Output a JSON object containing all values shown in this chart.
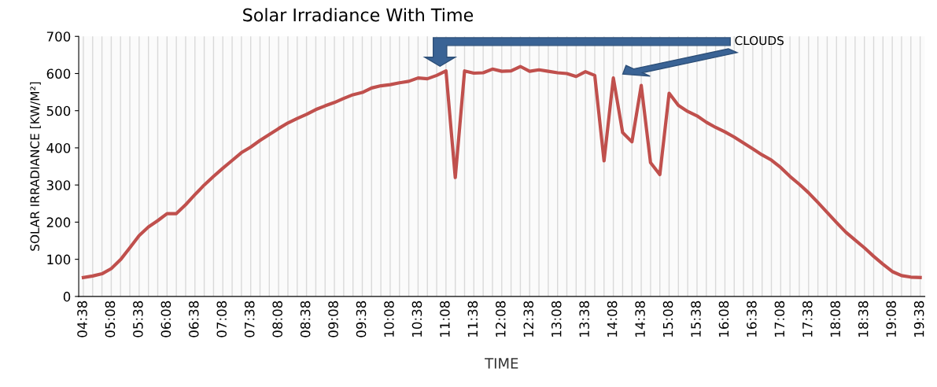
{
  "chart_data": {
    "type": "line",
    "title": "Solar Irradiance With Time",
    "xlabel": "TIME",
    "ylabel": "SOLAR IRRADIANCE [KW/M²]",
    "categories": [
      "04:38",
      null,
      null,
      "05:08",
      null,
      null,
      "05:38",
      null,
      null,
      "06:08",
      null,
      null,
      "06:38",
      null,
      null,
      "07:08",
      null,
      null,
      "07:38",
      null,
      null,
      "08:08",
      null,
      null,
      "08:38",
      null,
      null,
      "09:08",
      null,
      null,
      "09:38",
      null,
      null,
      "10:08",
      null,
      null,
      "10:38",
      null,
      null,
      "11:08",
      null,
      null,
      "11:38",
      null,
      null,
      "12:08",
      null,
      null,
      "12:38",
      null,
      null,
      "13:08",
      null,
      null,
      "13:38",
      null,
      null,
      "14:08",
      null,
      null,
      "14:38",
      null,
      null,
      "15:08",
      null,
      null,
      "15:38",
      null,
      null,
      "16:08",
      null,
      null,
      "16:38",
      null,
      null,
      "17:08",
      null,
      null,
      "17:38",
      null,
      null,
      "18:08",
      null,
      null,
      "18:38",
      null,
      null,
      "19:08",
      null,
      null,
      "19:38"
    ],
    "series": [
      {
        "color": "#c0504d",
        "values": [
          51,
          55,
          61,
          75,
          99,
          131,
          164,
          187,
          204,
          223,
          223,
          247,
          274,
          300,
          323,
          345,
          366,
          387,
          402,
          420,
          436,
          452,
          467,
          479,
          490,
          503,
          513,
          522,
          533,
          543,
          549,
          561,
          567,
          570,
          575,
          579,
          588,
          586,
          595,
          607,
          320,
          607,
          601,
          602,
          612,
          606,
          607,
          619,
          606,
          610,
          606,
          602,
          600,
          592,
          605,
          595,
          365,
          588,
          441,
          416,
          568,
          360,
          328,
          547,
          514,
          498,
          486,
          469,
          455,
          443,
          429,
          413,
          397,
          381,
          367,
          347,
          323,
          302,
          279,
          253,
          226,
          199,
          173,
          152,
          131,
          108,
          87,
          67,
          56,
          52,
          51
        ]
      }
    ],
    "ylim": [
      0,
      700
    ],
    "yticks": [
      0,
      100,
      200,
      300,
      400,
      500,
      600,
      700
    ],
    "grid": "x",
    "marker": "none",
    "line_style": "solid",
    "annotations": [
      "CLOUDS"
    ]
  }
}
